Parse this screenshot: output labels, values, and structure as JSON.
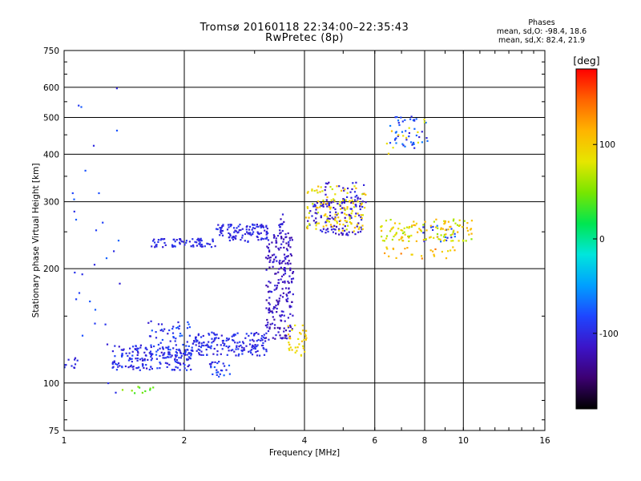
{
  "chart_data": {
    "type": "scatter",
    "title": "Tromsø 20160118 22:34:00–22:35:43",
    "subtitle": "RwPretec (8p)",
    "xlabel": "Frequency [MHz]",
    "ylabel": "Stationary phase Virtual Height [km]",
    "x_scale": "log",
    "y_scale": "log",
    "xlim": [
      1,
      16
    ],
    "ylim": [
      75,
      750
    ],
    "x_ticks": [
      1,
      2,
      4,
      6,
      8,
      10,
      16
    ],
    "x_tick_labels": [
      "1",
      "2",
      "4",
      "6",
      "8",
      "10",
      "16"
    ],
    "y_ticks": [
      75,
      100,
      200,
      300,
      400,
      500,
      600,
      750
    ],
    "y_tick_labels": [
      "75",
      "100",
      "200",
      "300",
      "400",
      "500",
      "600",
      "750"
    ],
    "grid": true,
    "colorbar": {
      "label": "[deg]",
      "range": [
        -180,
        180
      ],
      "ticks": [
        100,
        0,
        -100
      ],
      "tick_labels": [
        "100",
        "0",
        "-100"
      ],
      "colors": [
        "#000000",
        "#3c0072",
        "#3c14c8",
        "#1e46ff",
        "#00a0ff",
        "#00e6dc",
        "#00e650",
        "#78e600",
        "#e6e600",
        "#ffb400",
        "#ff6400",
        "#ff0000"
      ]
    },
    "stats": {
      "heading": "Phases",
      "line_o": "mean, sd,O: -98.4, 18.6",
      "line_x": "mean, sd,X: 82.4, 21.9"
    },
    "series": [
      {
        "component": "O",
        "clusters": [
          {
            "x": [
              0.98,
              1.08
            ],
            "y": [
              108,
              118
            ],
            "phase": [
              -110,
              -90
            ],
            "n": 12
          },
          {
            "x": [
              1.32,
              2.1
            ],
            "y": [
              108,
              126
            ],
            "phase": [
              -115,
              -80
            ],
            "n": 190
          },
          {
            "x": [
              1.6,
              2.1
            ],
            "y": [
              118,
              148
            ],
            "phase": [
              -110,
              -70
            ],
            "n": 60
          },
          {
            "x": [
              2.1,
              3.25
            ],
            "y": [
              118,
              136
            ],
            "phase": [
              -110,
              -85
            ],
            "n": 170
          },
          {
            "x": [
              2.3,
              2.6
            ],
            "y": [
              104,
              114
            ],
            "phase": [
              -110,
              -70
            ],
            "n": 25
          },
          {
            "x": [
              3.2,
              3.75
            ],
            "y": [
              130,
              250
            ],
            "phase": [
              -130,
              -100
            ],
            "n": 230
          },
          {
            "x": [
              3.45,
              3.55
            ],
            "y": [
              250,
              280
            ],
            "phase": [
              -120,
              -95
            ],
            "n": 12
          },
          {
            "x": [
              1.65,
              2.4
            ],
            "y": [
              228,
              240
            ],
            "phase": [
              -110,
              -90
            ],
            "n": 70
          },
          {
            "x": [
              2.4,
              3.25
            ],
            "y": [
              235,
              262
            ],
            "phase": [
              -110,
              -90
            ],
            "n": 110
          },
          {
            "x": [
              4.05,
              5.6
            ],
            "y": [
              245,
              300
            ],
            "phase": [
              -125,
              -95
            ],
            "n": 110
          },
          {
            "x": [
              4.5,
              5.7
            ],
            "y": [
              290,
              340
            ],
            "phase": [
              -120,
              -95
            ],
            "n": 40
          },
          {
            "x": [
              6.5,
              8.3
            ],
            "y": [
              415,
              505
            ],
            "phase": [
              -110,
              -60
            ],
            "n": 45
          },
          {
            "x": [
              1.05,
              1.4
            ],
            "y": [
              85,
              600
            ],
            "phase": [
              -110,
              -70
            ],
            "n": 30
          },
          {
            "x": [
              7.8,
              9.6
            ],
            "y": [
              235,
              262
            ],
            "phase": [
              -110,
              -60
            ],
            "n": 20
          }
        ]
      },
      {
        "component": "X",
        "clusters": [
          {
            "x": [
              3.6,
              4.05
            ],
            "y": [
              118,
              142
            ],
            "phase": [
              80,
              110
            ],
            "n": 35
          },
          {
            "x": [
              4.0,
              5.7
            ],
            "y": [
              250,
              330
            ],
            "phase": [
              70,
              115
            ],
            "n": 120
          },
          {
            "x": [
              6.2,
              10.5
            ],
            "y": [
              236,
              270
            ],
            "phase": [
              55,
              120
            ],
            "n": 120
          },
          {
            "x": [
              6.3,
              9.6
            ],
            "y": [
              212,
              228
            ],
            "phase": [
              90,
              140
            ],
            "n": 25
          },
          {
            "x": [
              6.4,
              9.0
            ],
            "y": [
              400,
              500
            ],
            "phase": [
              70,
              120
            ],
            "n": 12
          },
          {
            "x": [
              1.4,
              1.75
            ],
            "y": [
              94,
              98
            ],
            "phase": [
              30,
              60
            ],
            "n": 10
          }
        ]
      }
    ]
  }
}
